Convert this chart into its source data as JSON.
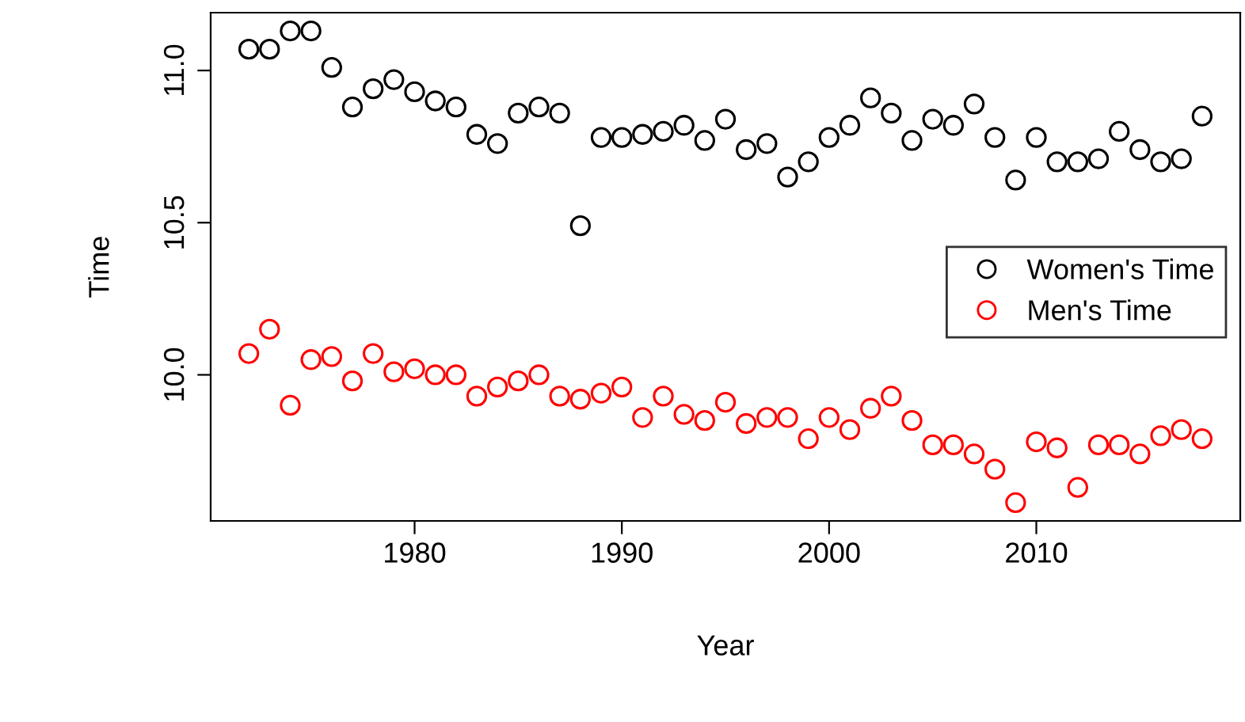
{
  "chart_data": {
    "type": "scatter",
    "xlabel": "Year",
    "ylabel": "Time",
    "marker": "circle",
    "legend": "right",
    "grid": false,
    "x": [
      1972,
      1973,
      1974,
      1975,
      1976,
      1977,
      1978,
      1979,
      1980,
      1981,
      1982,
      1983,
      1984,
      1985,
      1986,
      1987,
      1988,
      1989,
      1990,
      1991,
      1992,
      1993,
      1994,
      1995,
      1996,
      1997,
      1998,
      1999,
      2000,
      2001,
      2002,
      2003,
      2004,
      2005,
      2006,
      2007,
      2008,
      2009,
      2010,
      2011,
      2012,
      2013,
      2014,
      2015,
      2016,
      2017,
      2018
    ],
    "series": [
      {
        "name": "Women's Time",
        "color": "#000000",
        "values": [
          11.07,
          11.07,
          11.13,
          11.13,
          11.01,
          10.88,
          10.94,
          10.97,
          10.93,
          10.9,
          10.88,
          10.79,
          10.76,
          10.86,
          10.88,
          10.86,
          10.49,
          10.78,
          10.78,
          10.79,
          10.8,
          10.82,
          10.77,
          10.84,
          10.74,
          10.76,
          10.65,
          10.7,
          10.78,
          10.82,
          10.91,
          10.86,
          10.77,
          10.84,
          10.82,
          10.89,
          10.78,
          10.64,
          10.78,
          10.7,
          10.7,
          10.71,
          10.8,
          10.74,
          10.7,
          10.71,
          10.85
        ]
      },
      {
        "name": "Men's Time",
        "color": "#ff0000",
        "values": [
          10.07,
          10.15,
          9.9,
          10.05,
          10.06,
          9.98,
          10.07,
          10.01,
          10.02,
          10.0,
          10.0,
          9.93,
          9.96,
          9.98,
          10.0,
          9.93,
          9.92,
          9.94,
          9.96,
          9.86,
          9.93,
          9.87,
          9.85,
          9.91,
          9.84,
          9.86,
          9.86,
          9.79,
          9.86,
          9.82,
          9.89,
          9.93,
          9.85,
          9.77,
          9.77,
          9.74,
          9.69,
          9.58,
          9.78,
          9.76,
          9.63,
          9.77,
          9.77,
          9.74,
          9.8,
          9.82,
          9.79
        ]
      }
    ],
    "xlim": [
      1970.16,
      2019.84
    ],
    "xticks": [
      1980,
      1990,
      2000,
      2010
    ],
    "ylim": [
      9.52,
      11.19
    ],
    "yticks": [
      {
        "value": 10,
        "label": "10.0"
      },
      {
        "value": 10.5,
        "label": "10.5"
      },
      {
        "value": 11,
        "label": "11.0"
      }
    ]
  }
}
